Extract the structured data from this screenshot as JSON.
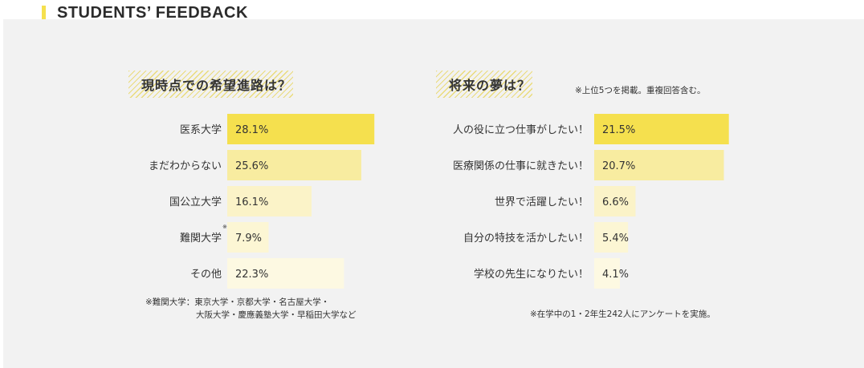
{
  "header": {
    "title": "STUDENTS’ FEEDBACK",
    "accent": "#f5e04e"
  },
  "chart_data": [
    {
      "type": "bar",
      "orientation": "horizontal",
      "title": "現時点での希望進路は？",
      "categories": [
        "医系大学",
        "まだわからない",
        "国公立大学",
        "難関大学",
        "その他"
      ],
      "category_marks": [
        "",
        "",
        "",
        "※",
        ""
      ],
      "values": [
        28.1,
        25.6,
        16.1,
        7.9,
        22.3
      ],
      "value_labels": [
        "28.1%",
        "25.6%",
        "16.1%",
        "7.9%",
        "22.3%"
      ],
      "colors": [
        "#f5e04e",
        "#f8eca0",
        "#fbf3c8",
        "#fcf6d4",
        "#fdf9e2"
      ],
      "footnote": [
        "※難関大学：東京大学・京都大学・名古屋大学・",
        "大阪大学・慶應義塾大学・早稲田大学など"
      ]
    },
    {
      "type": "bar",
      "orientation": "horizontal",
      "title": "将来の夢は？",
      "subtitle": "※上位5つを掲載。重複回答含む。",
      "categories": [
        "人の役に立つ仕事がしたい！",
        "医療関係の仕事に就きたい！",
        "世界で活躍したい！",
        "自分の特技を活かしたい！",
        "学校の先生になりたい！"
      ],
      "values": [
        21.5,
        20.7,
        6.6,
        5.4,
        4.1
      ],
      "value_labels": [
        "21.5%",
        "20.7%",
        "6.6%",
        "5.4%",
        "4.1%"
      ],
      "colors": [
        "#f5e04e",
        "#f8eca0",
        "#fbf3c8",
        "#fcf6d4",
        "#fdf9e2"
      ],
      "footnote": [
        "※在学中の1・2年生242人にアンケートを実施。"
      ]
    }
  ]
}
